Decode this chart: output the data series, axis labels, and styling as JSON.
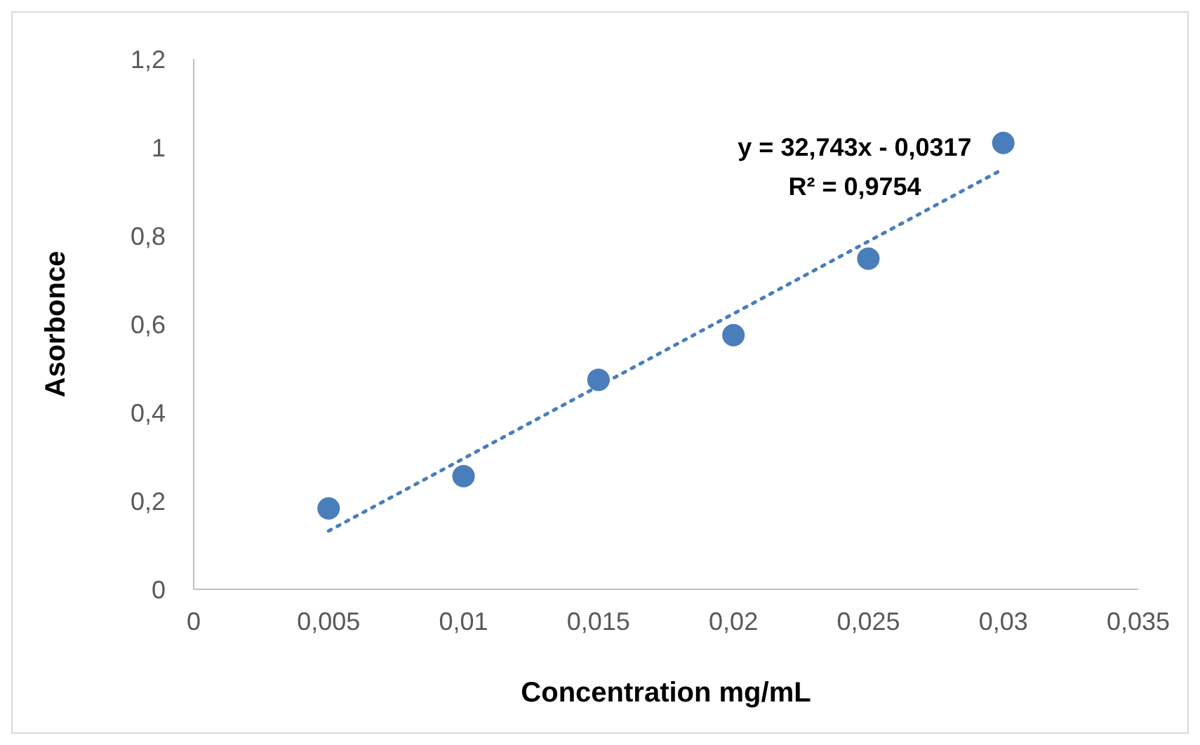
{
  "chart_data": {
    "type": "scatter",
    "xlabel": "Concentration mg/mL",
    "ylabel": "Asorbonce",
    "series": [
      {
        "color": "#4a7ebb",
        "marker": "circle",
        "x": [
          0.005,
          0.01,
          0.015,
          0.02,
          0.025,
          0.03
        ],
        "values": [
          0.183,
          0.256,
          0.474,
          0.575,
          0.748,
          1.01
        ]
      },
      {
        "type": "line",
        "color": "#4a7ebb",
        "marker": "none",
        "line_style": "dotted",
        "x": [
          0.005,
          0.03
        ],
        "values": [
          0.132,
          0.951
        ]
      }
    ],
    "annotations": [
      "y = 32,743x - 0,0317",
      "R² = 0,9754"
    ],
    "xlim": [
      0,
      0.035
    ],
    "xticks": [
      0,
      {
        "value": 0.005,
        "label": "0,005"
      },
      {
        "value": 0.01,
        "label": "0,01"
      },
      {
        "value": 0.015,
        "label": "0,015"
      },
      {
        "value": 0.02,
        "label": "0,02"
      },
      {
        "value": 0.025,
        "label": "0,025"
      },
      {
        "value": 0.03,
        "label": "0,03"
      },
      {
        "value": 0.035,
        "label": "0,035"
      }
    ],
    "ylim": [
      0,
      1.2
    ],
    "yticks": [
      0,
      {
        "value": 0.2,
        "label": "0,2"
      },
      {
        "value": 0.4,
        "label": "0,4"
      },
      {
        "value": 0.6,
        "label": "0,6"
      },
      {
        "value": 0.8,
        "label": "0,8"
      },
      1,
      {
        "value": 1.2,
        "label": "1,2"
      }
    ],
    "grid": false,
    "legend": false
  }
}
